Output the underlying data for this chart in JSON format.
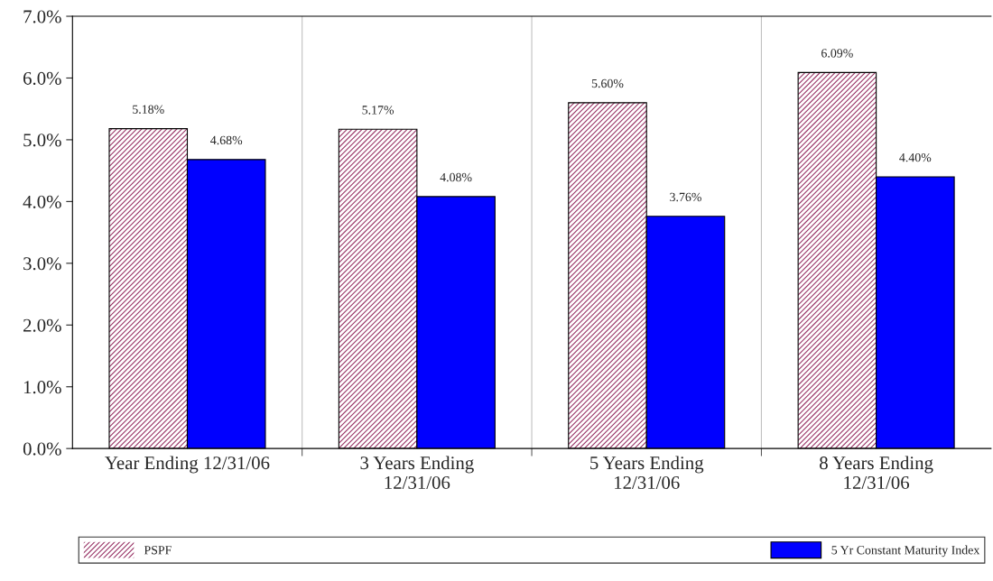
{
  "chart_data": {
    "type": "bar",
    "categories": [
      "Year Ending 12/31/06",
      "3 Years Ending\n12/31/06",
      "5 Years Ending\n12/31/06",
      "8 Years Ending\n12/31/06"
    ],
    "series": [
      {
        "name": "PSPF",
        "color": "#993366",
        "values": [
          5.18,
          5.17,
          5.6,
          6.09
        ],
        "value_labels": [
          "5.18%",
          "5.17%",
          "5.60%",
          "6.09%"
        ]
      },
      {
        "name": "5 Yr Constant Maturity Index",
        "color": "#0000ff",
        "values": [
          4.68,
          4.08,
          3.76,
          4.4
        ],
        "value_labels": [
          "4.68%",
          "4.08%",
          "3.76%",
          "4.40%"
        ]
      }
    ],
    "ylim": [
      0,
      7
    ],
    "yticks": [
      {
        "value": 0,
        "label": "0.0%"
      },
      {
        "value": 1,
        "label": "1.0%"
      },
      {
        "value": 2,
        "label": "2.0%"
      },
      {
        "value": 3,
        "label": "3.0%"
      },
      {
        "value": 4,
        "label": "4.0%"
      },
      {
        "value": 5,
        "label": "5.0%"
      },
      {
        "value": 6,
        "label": "6.0%"
      },
      {
        "value": 7,
        "label": "7.0%"
      }
    ],
    "grid": "x",
    "legend": "bottom"
  }
}
